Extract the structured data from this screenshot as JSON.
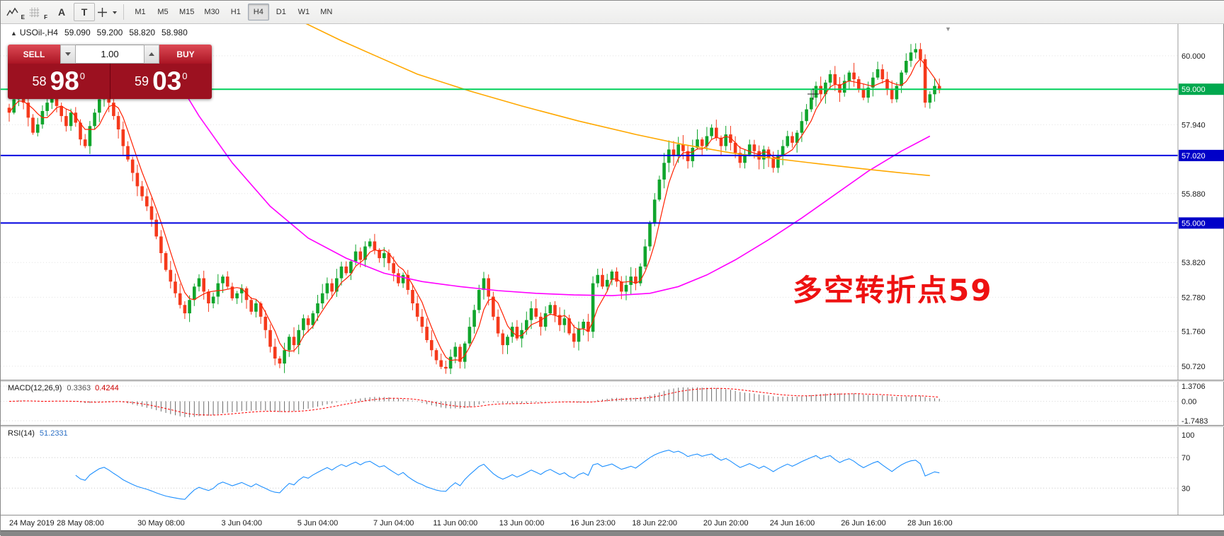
{
  "toolbar": {
    "icons": [
      {
        "name": "indicator-chart-icon",
        "badge": "E"
      },
      {
        "name": "grid-icon",
        "badge": "F"
      },
      {
        "name": "text-label-icon",
        "glyph": "A"
      },
      {
        "name": "text-box-icon",
        "glyph": "T"
      },
      {
        "name": "crosshair-icon"
      }
    ],
    "timeframes": [
      "M1",
      "M5",
      "M15",
      "M30",
      "H1",
      "H4",
      "D1",
      "W1",
      "MN"
    ],
    "active_timeframe": "H4"
  },
  "chart": {
    "type": "candlestick",
    "header": {
      "symbol": "USOil-,H4",
      "open": "59.090",
      "high": "59.200",
      "low": "58.820",
      "close": "58.980"
    },
    "trade": {
      "sell_label": "SELL",
      "buy_label": "BUY",
      "volume": "1.00",
      "sell": {
        "int": "58",
        "pips": "98",
        "sup": "0"
      },
      "buy": {
        "int": "59",
        "pips": "03",
        "sup": "0"
      }
    },
    "annotation": "多空转折点59",
    "colors": {
      "bull": "#10a52c",
      "bear": "#f5391b",
      "ma_fast": "#ff2000",
      "ma_mid": "#ff00ff",
      "ma_slow": "#ffa800",
      "grid": "#e4e4e4"
    },
    "price_axis": [
      {
        "v": 60.0,
        "t": "60.000"
      },
      {
        "v": 59.0,
        "t": "59.000"
      },
      {
        "v": 57.94,
        "t": "57.940"
      },
      {
        "v": 57.02,
        "t": "57.020"
      },
      {
        "v": 55.88,
        "t": "55.880"
      },
      {
        "v": 55.0,
        "t": "55.000"
      },
      {
        "v": 53.82,
        "t": "53.820"
      },
      {
        "v": 52.78,
        "t": "52.780"
      },
      {
        "v": 51.76,
        "t": "51.760"
      },
      {
        "v": 50.72,
        "t": "50.720"
      }
    ],
    "hlines": [
      {
        "v": 59.0,
        "t": "59.000",
        "line": "#00d05a",
        "badge": "#00a84e"
      },
      {
        "v": 57.02,
        "t": "57.020",
        "line": "#0000e0",
        "badge": "#0000c8"
      },
      {
        "v": 55.0,
        "t": "55.000",
        "line": "#0000e0",
        "badge": "#0000c8"
      }
    ],
    "closes": [
      58.3,
      58.7,
      58.95,
      58.6,
      58.15,
      57.7,
      57.95,
      58.35,
      58.6,
      58.85,
      58.5,
      58.2,
      57.9,
      58.3,
      58.0,
      57.5,
      57.3,
      57.9,
      58.3,
      58.7,
      58.9,
      58.6,
      58.2,
      57.8,
      57.3,
      56.9,
      56.5,
      56.1,
      55.8,
      55.5,
      55.1,
      54.6,
      54.1,
      53.6,
      53.25,
      52.9,
      52.55,
      52.3,
      52.7,
      53.1,
      53.35,
      52.95,
      52.6,
      52.8,
      53.2,
      53.4,
      53.1,
      52.75,
      52.9,
      53.05,
      52.7,
      52.35,
      52.6,
      52.2,
      51.8,
      51.3,
      50.95,
      50.8,
      51.2,
      51.6,
      51.35,
      51.8,
      52.15,
      51.95,
      52.3,
      52.6,
      52.9,
      53.2,
      52.95,
      53.35,
      53.7,
      53.5,
      53.85,
      54.15,
      53.9,
      54.3,
      54.45,
      54.2,
      53.95,
      54.1,
      53.8,
      53.5,
      53.2,
      53.45,
      53.0,
      52.6,
      52.2,
      51.9,
      51.5,
      51.2,
      50.9,
      50.7,
      50.65,
      51.0,
      51.3,
      50.85,
      51.4,
      51.9,
      52.4,
      53.0,
      53.35,
      52.8,
      52.2,
      51.7,
      51.35,
      51.6,
      51.9,
      51.55,
      51.8,
      52.1,
      52.45,
      52.2,
      51.9,
      52.3,
      52.55,
      52.25,
      51.95,
      52.15,
      51.7,
      51.45,
      51.85,
      52.05,
      51.75,
      53.2,
      53.45,
      53.1,
      53.3,
      53.55,
      53.25,
      52.95,
      53.15,
      53.4,
      53.2,
      53.7,
      54.3,
      55.0,
      55.7,
      56.3,
      56.8,
      57.2,
      57.0,
      57.35,
      57.15,
      56.85,
      57.25,
      57.5,
      57.3,
      57.6,
      57.85,
      57.55,
      57.3,
      57.65,
      57.4,
      57.1,
      56.8,
      57.05,
      57.35,
      57.15,
      56.9,
      57.2,
      56.95,
      56.65,
      57.0,
      57.3,
      57.6,
      57.4,
      57.7,
      58.05,
      58.4,
      58.75,
      59.1,
      58.85,
      59.2,
      59.45,
      59.15,
      58.9,
      59.25,
      59.5,
      59.3,
      59.0,
      58.75,
      59.05,
      59.35,
      59.6,
      59.3,
      59.0,
      58.7,
      59.1,
      59.5,
      59.85,
      60.1,
      60.2,
      59.9,
      58.6,
      58.85,
      59.1,
      58.98
    ],
    "ma_fast_period": 5,
    "ma_mid_points": [
      [
        34,
        59.6
      ],
      [
        40,
        58.2
      ],
      [
        47,
        56.8
      ],
      [
        55,
        55.5
      ],
      [
        63,
        54.55
      ],
      [
        71,
        53.95
      ],
      [
        79,
        53.5
      ],
      [
        87,
        53.25
      ],
      [
        95,
        53.1
      ],
      [
        103,
        52.98
      ],
      [
        111,
        52.9
      ],
      [
        119,
        52.85
      ],
      [
        127,
        52.83
      ],
      [
        135,
        52.9
      ],
      [
        141,
        53.1
      ],
      [
        147,
        53.45
      ],
      [
        153,
        53.9
      ],
      [
        160,
        54.5
      ],
      [
        167,
        55.15
      ],
      [
        174,
        55.85
      ],
      [
        181,
        56.55
      ],
      [
        188,
        57.15
      ],
      [
        194,
        57.6
      ]
    ],
    "ma_slow_points": [
      [
        57,
        61.4
      ],
      [
        62,
        61.0
      ],
      [
        70,
        60.45
      ],
      [
        78,
        59.95
      ],
      [
        86,
        59.45
      ],
      [
        97,
        58.95
      ],
      [
        108,
        58.5
      ],
      [
        120,
        58.05
      ],
      [
        132,
        57.65
      ],
      [
        142,
        57.35
      ],
      [
        152,
        57.1
      ],
      [
        160,
        56.95
      ],
      [
        170,
        56.78
      ],
      [
        180,
        56.62
      ],
      [
        188,
        56.5
      ],
      [
        194,
        56.42
      ]
    ],
    "time_labels": [
      {
        "i": 0,
        "t": "24 May 2019"
      },
      {
        "i": 15,
        "t": "28 May 08:00"
      },
      {
        "i": 32,
        "t": "30 May 08:00"
      },
      {
        "i": 49,
        "t": "3 Jun 04:00"
      },
      {
        "i": 65,
        "t": "5 Jun 04:00"
      },
      {
        "i": 81,
        "t": "7 Jun 04:00"
      },
      {
        "i": 94,
        "t": "11 Jun 00:00"
      },
      {
        "i": 108,
        "t": "13 Jun 00:00"
      },
      {
        "i": 123,
        "t": "16 Jun 23:00"
      },
      {
        "i": 136,
        "t": "18 Jun 22:00"
      },
      {
        "i": 151,
        "t": "20 Jun 20:00"
      },
      {
        "i": 165,
        "t": "24 Jun 16:00"
      },
      {
        "i": 180,
        "t": "26 Jun 16:00"
      },
      {
        "i": 194,
        "t": "28 Jun 16:00"
      }
    ]
  },
  "macd": {
    "name": "MACD(12,26,9)",
    "main_value": "0.3363",
    "signal_value": "0.4244",
    "fast": 12,
    "slow": 26,
    "signal": 9,
    "axis": [
      {
        "v": 1.3706,
        "t": "1.3706"
      },
      {
        "v": 0,
        "t": "0.00"
      },
      {
        "v": -1.7483,
        "t": "-1.7483"
      }
    ],
    "colors": {
      "hist": "#6b6b6b",
      "signal": "#ff0000"
    }
  },
  "rsi": {
    "name": "RSI(14)",
    "value": "51.2331",
    "period": 14,
    "axis": [
      {
        "v": 100,
        "t": "100"
      },
      {
        "v": 70,
        "t": "70"
      },
      {
        "v": 30,
        "t": "30"
      }
    ],
    "levels": [
      70,
      30
    ],
    "color": "#1e90ff"
  }
}
